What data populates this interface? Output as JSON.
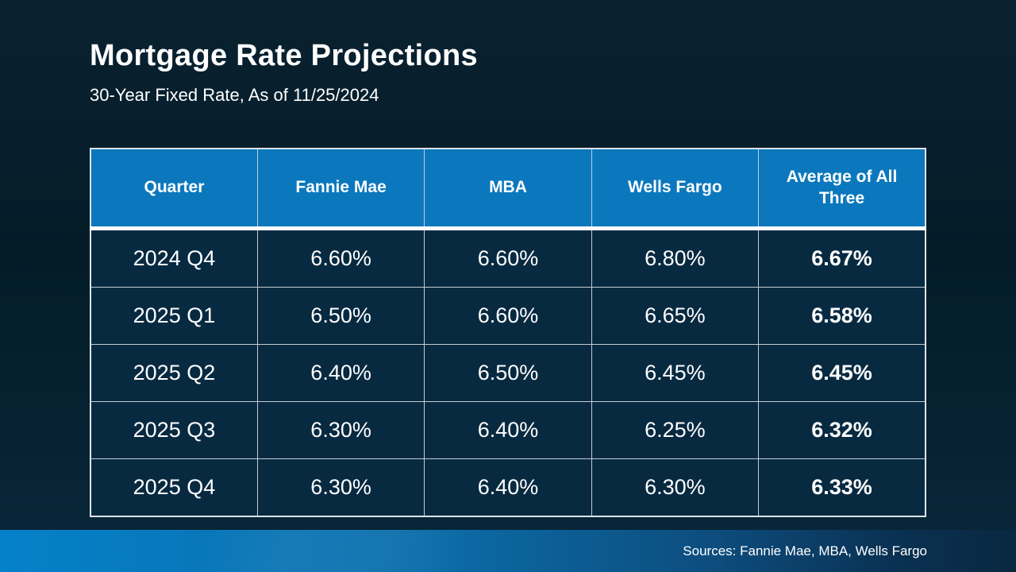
{
  "slide": {
    "title": "Mortgage Rate Projections",
    "subtitle": "30-Year Fixed Rate, As of 11/25/2024",
    "source_note": "Sources: Fannie Mae, MBA, Wells Fargo"
  },
  "colors": {
    "background_dark_navy": "#051e2b",
    "table_header_blue": "#0b78bd",
    "table_row_navy": "#082a41",
    "table_border_light": "#c2ccd3",
    "header_underline_white": "#ffffff",
    "footer_gradient_left_blue": "#0581c9",
    "footer_gradient_right_navy": "#092840",
    "text_white": "#ffffff"
  },
  "chart_data": {
    "type": "table",
    "title": "Mortgage Rate Projections",
    "subtitle": "30-Year Fixed Rate, As of 11/25/2024",
    "columns": [
      "Quarter",
      "Fannie Mae",
      "MBA",
      "Wells Fargo",
      "Average of All Three"
    ],
    "rows": [
      [
        "2024 Q4",
        "6.60%",
        "6.60%",
        "6.80%",
        "6.67%"
      ],
      [
        "2025 Q1",
        "6.50%",
        "6.60%",
        "6.65%",
        "6.58%"
      ],
      [
        "2025 Q2",
        "6.40%",
        "6.50%",
        "6.45%",
        "6.45%"
      ],
      [
        "2025 Q3",
        "6.30%",
        "6.40%",
        "6.25%",
        "6.32%"
      ],
      [
        "2025 Q4",
        "6.30%",
        "6.40%",
        "6.30%",
        "6.33%"
      ]
    ],
    "notes": "Last column (Average of All Three) rendered in bold; header row blue with thick white underline",
    "source": "Sources: Fannie Mae, MBA, Wells Fargo"
  }
}
